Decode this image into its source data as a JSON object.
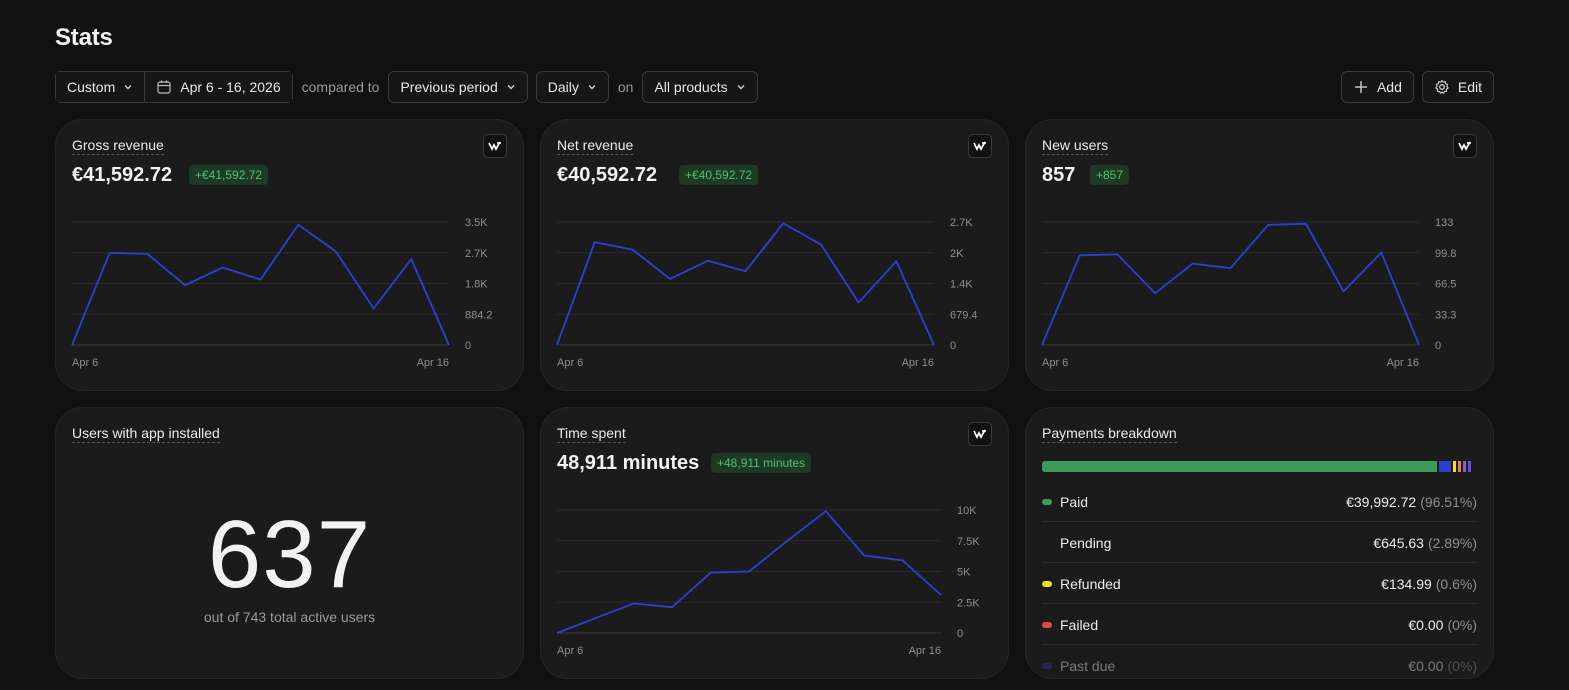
{
  "page": {
    "title": "Stats"
  },
  "toolbar": {
    "range_type": "Custom",
    "date_range": "Apr 6 - 16, 2026",
    "compared_to_text": "compared to",
    "compare_option": "Previous period",
    "interval": "Daily",
    "on_text": "on",
    "product_filter": "All products",
    "add_label": "Add",
    "edit_label": "Edit"
  },
  "cards": {
    "gross": {
      "label": "Gross revenue",
      "value": "€41,592.72",
      "change": "+€41,592.72"
    },
    "net": {
      "label": "Net revenue",
      "value": "€40,592.72",
      "change": "+€40,592.72"
    },
    "users": {
      "label": "New users",
      "value": "857",
      "change": "+857"
    },
    "installed": {
      "label": "Users with app installed",
      "value": "637",
      "subtitle": "out of 743 total active users"
    },
    "time": {
      "label": "Time spent",
      "value": "48,911 minutes",
      "change": "+48,911 minutes"
    },
    "payments": {
      "label": "Payments breakdown",
      "rows": [
        {
          "name": "Paid",
          "amount": "€39,992.72",
          "pct": "(96.51%)",
          "color": "#3d9a58"
        },
        {
          "name": "Pending",
          "amount": "€645.63",
          "pct": "(2.89%)",
          "color": "#2f3fd0"
        },
        {
          "name": "Refunded",
          "amount": "€134.99",
          "pct": "(0.6%)",
          "color": "#f2e21a"
        },
        {
          "name": "Failed",
          "amount": "€0.00",
          "pct": "(0%)",
          "color": "#e04848"
        },
        {
          "name": "Past due",
          "amount": "€0.00",
          "pct": "(0%)",
          "color": "#2a3a9a"
        }
      ]
    }
  },
  "chart_data": [
    {
      "type": "line",
      "title": "Gross revenue",
      "x_labels": [
        "Apr 6",
        "Apr 16"
      ],
      "y_ticks": [
        "0",
        "884.2",
        "1.8K",
        "2.7K",
        "3.5K"
      ],
      "ylim": [
        0,
        3537
      ],
      "values": [
        0,
        2650,
        2620,
        1720,
        2230,
        1880,
        3460,
        2690,
        1050,
        2470,
        0
      ],
      "color": "#2d3fd6"
    },
    {
      "type": "line",
      "title": "Net revenue",
      "x_labels": [
        "Apr 6",
        "Apr 16"
      ],
      "y_ticks": [
        "0",
        "679.4",
        "1.4K",
        "2K",
        "2.7K"
      ],
      "ylim": [
        0,
        2718
      ],
      "values": [
        0,
        2270,
        2110,
        1460,
        1860,
        1630,
        2690,
        2220,
        940,
        1850,
        0
      ],
      "color": "#2d3fd6"
    },
    {
      "type": "line",
      "title": "New users",
      "x_labels": [
        "Apr 6",
        "Apr 16"
      ],
      "y_ticks": [
        "0",
        "33.3",
        "66.5",
        "99.8",
        "133"
      ],
      "ylim": [
        0,
        133
      ],
      "values": [
        0,
        97,
        98,
        56,
        88,
        83,
        130,
        131,
        58,
        100,
        0
      ],
      "color": "#2d3fd6"
    },
    {
      "type": "line",
      "title": "Time spent",
      "x_labels": [
        "Apr 6",
        "Apr 16"
      ],
      "y_ticks": [
        "0",
        "2.5K",
        "5K",
        "7.5K",
        "10K"
      ],
      "ylim": [
        0,
        10000
      ],
      "values": [
        0,
        1200,
        2400,
        2100,
        4900,
        5000,
        7500,
        9900,
        6300,
        5900,
        3100
      ],
      "color": "#2d3fd6"
    }
  ]
}
